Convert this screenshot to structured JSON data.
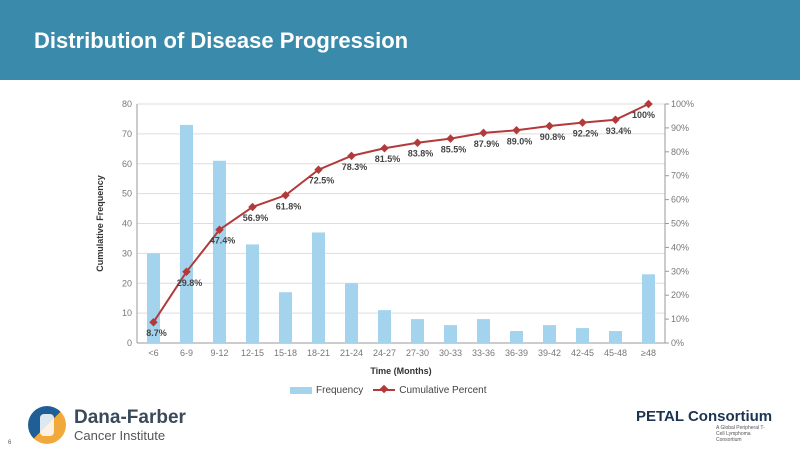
{
  "slide": {
    "title": "Distribution of Disease Progression",
    "page_number": "6"
  },
  "footer": {
    "left_logo_name": "Dana-Farber",
    "left_logo_sub": "Cancer Institute",
    "right_logo_name": "PETAL Consortium",
    "right_logo_sub": "A Global Peripheral T-Cell Lymphoma Consortium"
  },
  "colors": {
    "header": "#3a8aab",
    "bars": "#a4d3ee",
    "line": "#b33a3a"
  },
  "chart_data": {
    "type": "bar",
    "title": "",
    "xlabel": "Time (Months)",
    "ylabel": "Cumulative Frequency",
    "ylim": [
      0,
      80
    ],
    "y2lim": [
      0,
      100
    ],
    "yticks": [
      "0",
      "10",
      "20",
      "30",
      "40",
      "50",
      "60",
      "70",
      "80"
    ],
    "y2ticks": [
      "0%",
      "10%",
      "20%",
      "30%",
      "40%",
      "50%",
      "60%",
      "70%",
      "80%",
      "90%",
      "100%"
    ],
    "grid": true,
    "legend_position": "bottom",
    "categories": [
      "<6",
      "6-9",
      "9-12",
      "12-15",
      "15-18",
      "18-21",
      "21-24",
      "24-27",
      "27-30",
      "30-33",
      "33-36",
      "36-39",
      "39-42",
      "42-45",
      "45-48",
      "≥48"
    ],
    "series": [
      {
        "name": "Frequency",
        "type": "bar",
        "axis": "left",
        "values": [
          30,
          73,
          61,
          33,
          17,
          37,
          20,
          11,
          8,
          6,
          8,
          4,
          6,
          5,
          4,
          23
        ]
      },
      {
        "name": "Cumulative Percent",
        "type": "line",
        "axis": "right",
        "values": [
          8.7,
          29.8,
          47.4,
          56.9,
          61.8,
          72.5,
          78.3,
          81.5,
          83.8,
          85.5,
          87.9,
          89.0,
          90.8,
          92.2,
          93.4,
          100
        ],
        "labels": [
          "8.7%",
          "29.8%",
          "47.4%",
          "56.9%",
          "61.8%",
          "72.5%",
          "78.3%",
          "81.5%",
          "83.8%",
          "85.5%",
          "87.9%",
          "89.0%",
          "90.8%",
          "92.2%",
          "93.4%",
          "100%"
        ]
      }
    ]
  }
}
